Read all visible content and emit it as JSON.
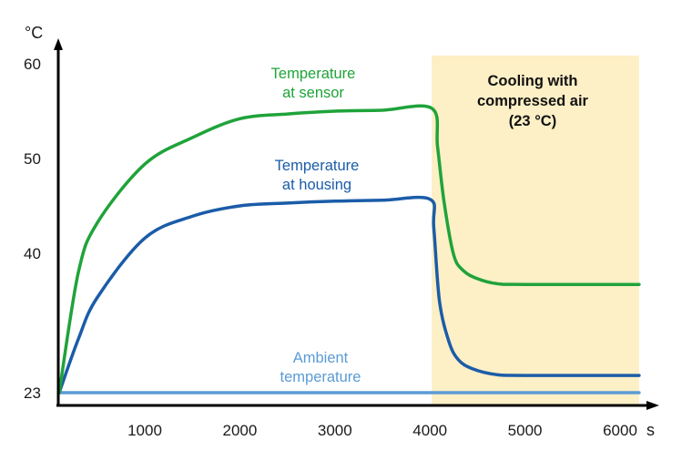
{
  "chart_data": {
    "type": "line",
    "title": "",
    "xlabel": "s",
    "ylabel": "°C",
    "xlim": [
      0,
      6300
    ],
    "y_ticks": [
      23,
      40,
      50,
      60
    ],
    "y_tick_labels": [
      "23",
      "40",
      "50",
      "60"
    ],
    "x_ticks": [
      1000,
      2000,
      3000,
      4000,
      5000,
      6000
    ],
    "x_tick_labels": [
      "1000",
      "2000",
      "3000",
      "4000",
      "5000",
      "6000"
    ],
    "grid": false,
    "legend": "none (inline labels)",
    "shaded_region": {
      "x_start": 4000,
      "x_end": 6200,
      "label_lines": [
        "Cooling with",
        "compressed air",
        "(23 °C)"
      ],
      "color": "#fdefc6"
    },
    "series": [
      {
        "name": "Temperature at sensor",
        "label_lines": [
          "Temperature",
          "at sensor"
        ],
        "color": "#1fa33a",
        "x": [
          100,
          300,
          500,
          1000,
          1500,
          2000,
          2500,
          3000,
          3500,
          4020,
          4080,
          4150,
          4250,
          4350,
          4500,
          4700,
          5000,
          6200
        ],
        "values": [
          23,
          37.6,
          43.2,
          49.4,
          52.2,
          54.2,
          54.7,
          55.0,
          55.1,
          55.3,
          51.2,
          45.3,
          39.8,
          37.9,
          36.9,
          36.3,
          36.2,
          36.2
        ]
      },
      {
        "name": "Temperature at housing",
        "label_lines": [
          "Temperature",
          "at housing"
        ],
        "color": "#1b5ca8",
        "x": [
          100,
          300,
          500,
          1000,
          1500,
          2000,
          2500,
          3000,
          3500,
          4000,
          4040,
          4100,
          4200,
          4300,
          4450,
          4700,
          5000,
          6200
        ],
        "values": [
          23,
          29.5,
          34.6,
          41.6,
          43.9,
          45.0,
          45.3,
          45.5,
          45.6,
          45.7,
          42.7,
          34.2,
          29.2,
          27.0,
          25.9,
          25.2,
          25.1,
          25.1
        ]
      },
      {
        "name": "Ambient temperature",
        "label_lines": [
          "Ambient",
          "temperature"
        ],
        "color": "#5b9bd5",
        "x": [
          100,
          6200
        ],
        "values": [
          23,
          23
        ]
      }
    ]
  }
}
